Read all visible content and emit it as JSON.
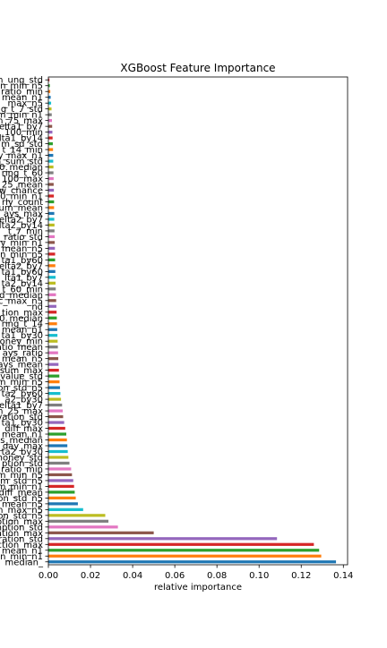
{
  "chart_data": {
    "type": "bar",
    "orientation": "horizontal",
    "title": "XGBoost Feature Importance",
    "xlabel": "relative importance",
    "ylabel": "",
    "xlim": [
      0,
      0.142
    ],
    "xticks": [
      0.0,
      0.02,
      0.04,
      0.06,
      0.08,
      0.1,
      0.12,
      0.14
    ],
    "xtick_labels": [
      "0.00",
      "0.02",
      "0.04",
      "0.06",
      "0.08",
      "0.10",
      "0.12",
      "0.14"
    ],
    "grid": false,
    "legend": "none",
    "categories": [
      "median_",
      "n_min_n1",
      "mean_n1",
      "ction_max",
      "_ration_std",
      "ation_max",
      "mption_std",
      "ption_max",
      "tion_std_n5",
      "n_max_n5",
      "mean_n5",
      "on_std_n5",
      "diff_mean",
      "m_min_n1",
      "m_std_n5",
      "m_min_n5",
      "ratio_min",
      "ption_std",
      "money_std",
      "ta2_by30",
      "_day_max",
      "s_median",
      "mean_n1",
      "diff_max",
      "ta1_by30",
      "vation_std",
      "n_25_max",
      "elta1_by7",
      "a2_by30",
      "ta2_by60",
      "on_std_n5",
      "m_min_n5",
      "value_std",
      "sum_max",
      "ays_mean",
      "mean_n5",
      "ays_ratio",
      "atio_mean",
      "money_min",
      "ta1_by30",
      "mean_n1",
      "ring_t_14",
      "0_median",
      "tion_max",
      "nd",
      "c_max_n5",
      "d_median",
      "t_60_min",
      "ta2_by14",
      "lta1_by7",
      "ta1_by60",
      "delta2_by7",
      "ta1_by60",
      "n_min_n5",
      "mean_n5",
      "y_min_n1",
      "_ratio_std",
      "_t_7_min",
      "elta2_by14",
      "elta2_by7",
      "ays_max",
      "sum_mean",
      "rly_count",
      "0_min_n1",
      "w_chance",
      "n_25_mean",
      "100_max",
      "ring_t_60",
      "0_median",
      "n_sum_std",
      "y_max_n1",
      "t_14_min",
      "m_sd_std",
      "lta1_by14",
      "100_min",
      "delta1_by7",
      "n_75_max",
      "m_min_n1",
      "g_t_7_std",
      "_max_n5",
      "mean_n1",
      "ratio_min",
      "n_min_n5",
      "n_ung_std"
    ],
    "values": [
      0.1365,
      0.1295,
      0.1285,
      0.126,
      0.1085,
      0.05,
      0.033,
      0.0285,
      0.027,
      0.0165,
      0.014,
      0.013,
      0.0125,
      0.0122,
      0.0118,
      0.0112,
      0.0108,
      0.01,
      0.0095,
      0.0092,
      0.009,
      0.0088,
      0.0085,
      0.008,
      0.0075,
      0.007,
      0.0068,
      0.0065,
      0.006,
      0.0057,
      0.0055,
      0.0053,
      0.0052,
      0.005,
      0.0048,
      0.0047,
      0.0046,
      0.0045,
      0.0044,
      0.0043,
      0.0042,
      0.0041,
      0.004,
      0.0039,
      0.0038,
      0.0037,
      0.0036,
      0.0035,
      0.0034,
      0.0034,
      0.0033,
      0.0033,
      0.0032,
      0.0032,
      0.0031,
      0.003,
      0.003,
      0.0029,
      0.0029,
      0.0028,
      0.0028,
      0.0027,
      0.0027,
      0.0026,
      0.0026,
      0.0025,
      0.0025,
      0.0024,
      0.0024,
      0.0023,
      0.0023,
      0.0022,
      0.0021,
      0.002,
      0.0019,
      0.0018,
      0.0017,
      0.0016,
      0.0015,
      0.0013,
      0.0011,
      0.0009,
      0.0007,
      0.0005
    ],
    "colors": [
      "#1f77b4",
      "#ff7f0e",
      "#2ca02c",
      "#d62728",
      "#9467bd",
      "#8c564b",
      "#e377c2",
      "#7f7f7f",
      "#bcbd22",
      "#17becf"
    ]
  }
}
